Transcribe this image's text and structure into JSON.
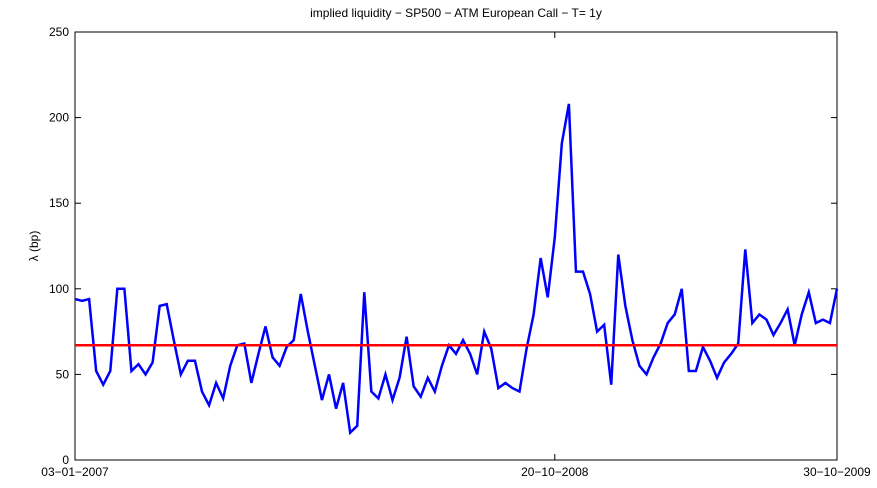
{
  "chart_data": {
    "type": "line",
    "title": "implied liquidity − SP500 − ATM European Call − T= 1y",
    "ylabel": "λ (bp)",
    "x": [
      0,
      1,
      2,
      3,
      4,
      5,
      6,
      7,
      8,
      9,
      10,
      11,
      12,
      13,
      14,
      15,
      16,
      17,
      18,
      19,
      20,
      21,
      22,
      23,
      24,
      25,
      26,
      27,
      28,
      29,
      30,
      31,
      32,
      33,
      34,
      35,
      36,
      37,
      38,
      39,
      40,
      41,
      42,
      43,
      44,
      45,
      46,
      47,
      48,
      49,
      50,
      51,
      52,
      53,
      54,
      55,
      56,
      57,
      58,
      59,
      60,
      61,
      62,
      63,
      64,
      65,
      66,
      67,
      68,
      69,
      70,
      71,
      72,
      73,
      74,
      75,
      76,
      77,
      78,
      79,
      80,
      81,
      82,
      83,
      84,
      85,
      86,
      87,
      88,
      89,
      90,
      91,
      92,
      93,
      94,
      95,
      96,
      97,
      98,
      99,
      100,
      101,
      102,
      103,
      104,
      105,
      106,
      107,
      108
    ],
    "series": [
      {
        "color": "#0000ff",
        "values": [
          94,
          93,
          94,
          52,
          44,
          52,
          100,
          100,
          52,
          56,
          50,
          57,
          90,
          91,
          70,
          50,
          58,
          58,
          40,
          32,
          45,
          36,
          55,
          67,
          68,
          45,
          62,
          78,
          60,
          55,
          66,
          70,
          97,
          75,
          55,
          35,
          50,
          30,
          45,
          16,
          20,
          98,
          40,
          36,
          50,
          35,
          48,
          72,
          43,
          37,
          48,
          40,
          55,
          67,
          62,
          70,
          62,
          50,
          75,
          65,
          42,
          45,
          42,
          40,
          65,
          85,
          118,
          95,
          130,
          185,
          208,
          110,
          110,
          97,
          75,
          79,
          44,
          120,
          90,
          70,
          55,
          50,
          60,
          68,
          80,
          85,
          100,
          52,
          52,
          66,
          58,
          48,
          57,
          62,
          68,
          123,
          80,
          85,
          82,
          73,
          80,
          88,
          67,
          85,
          98,
          80,
          82,
          80,
          100
        ]
      }
    ],
    "reference_line": {
      "value": 67,
      "color": "#ff0000"
    },
    "xlim": [
      0,
      108
    ],
    "xticks": [
      {
        "value": 0,
        "label": "03−01−2007"
      },
      {
        "value": 68,
        "label": "20−10−2008"
      },
      {
        "value": 108,
        "label": "30−10−2009"
      }
    ],
    "ylim": [
      0,
      250
    ],
    "yticks": [
      0,
      50,
      100,
      150,
      200,
      250
    ]
  }
}
